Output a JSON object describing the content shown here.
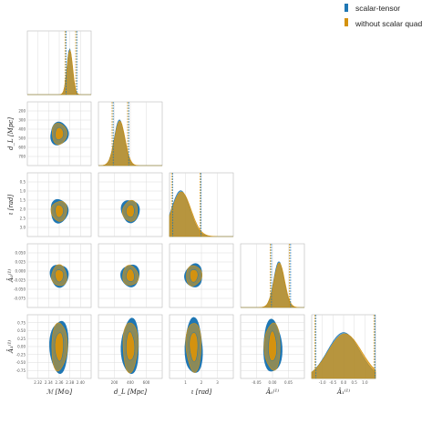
{
  "chart_data": {
    "type": "corner",
    "colors": {
      "scalar_tensor": "#1f77b4",
      "without_scalar": "#d4920f",
      "overlap": "#8a8a5a",
      "grid": "#dcdcdc"
    },
    "legend": {
      "placement": "top-right",
      "items": [
        {
          "label": "scalar-tensor",
          "color": "#1f77b4"
        },
        {
          "label": "without scalar quad",
          "color": "#d4920f"
        }
      ]
    },
    "parameters": [
      {
        "label": "ℳ [M⊙]",
        "ylabel": "",
        "range": [
          2.315,
          2.41
        ],
        "ticks": [
          "2.32",
          "2.34",
          "2.36",
          "2.38",
          "2.40"
        ],
        "peak": 2.378,
        "width": 0.004,
        "ci": [
          2.371,
          2.387
        ]
      },
      {
        "label": "d_L [Mpc]",
        "ylabel": "d_L [Mpc]",
        "range": [
          100,
          800
        ],
        "ticks": [
          "200",
          "400",
          "600"
        ],
        "yticks": [
          "200",
          "300",
          "400",
          "500",
          "600",
          "700"
        ],
        "peak": 330,
        "width": 55,
        "ci": [
          250,
          420
        ]
      },
      {
        "label": "ι [rad]",
        "ylabel": "ι [rad]",
        "range": [
          0,
          3.14
        ],
        "ticks": [
          "1",
          "2",
          "3"
        ],
        "yticks": [
          "0.5",
          "1.0",
          "1.5",
          "2.0",
          "2.5",
          "3.0"
        ],
        "peak": 0.55,
        "width": 0.45,
        "ci": [
          0.1,
          1.5
        ]
      },
      {
        "label": "Â₀⁽¹⁾",
        "ylabel": "Â₀⁽¹⁾",
        "range": [
          -0.09,
          0.06
        ],
        "ticks": [
          "-0.05",
          "0.00",
          "0.05"
        ],
        "yticks": [
          "0.050",
          "0.025",
          "0.000",
          "-0.025",
          "-0.050",
          "-0.075"
        ],
        "peak": 0.0,
        "width": 0.012,
        "ci": [
          -0.02,
          0.025
        ]
      },
      {
        "label": "Â₁⁽¹⁾",
        "ylabel": "Â₁⁽¹⁾",
        "range": [
          -1.0,
          1.0
        ],
        "ticks": [
          "-1.0",
          "-0.5",
          "0.0",
          "0.5",
          "1.0"
        ],
        "yticks": [
          "0.75",
          "0.50",
          "0.25",
          "0.00",
          "-0.25",
          "-0.50",
          "-0.75"
        ],
        "peak": 0.0,
        "width": 0.5,
        "ci": [
          -0.9,
          0.95
        ]
      }
    ]
  }
}
